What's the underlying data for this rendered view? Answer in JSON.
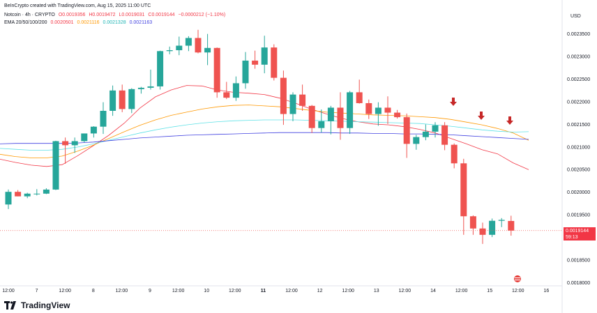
{
  "header": {
    "title": "BeInCrypto created with TradingView.com, Aug 15, 2025 11:00 UTC"
  },
  "ohlc": {
    "symbol": "Notcoin · 4h · CRYPTO",
    "open": "O0.0019356",
    "high": "H0.0019472",
    "low": "L0.0019031",
    "close": "C0.0019144",
    "change": "−0.0000212 (−1.10%)"
  },
  "ema": {
    "label": "EMA 20/50/100/200",
    "values": [
      "0.0020501",
      "0.0021116",
      "0.0021328",
      "0.0021163"
    ],
    "colors": [
      "#f23645",
      "#ff9800",
      "#5ce1e6",
      "#3f3fe0"
    ]
  },
  "axis": {
    "currency": "USD"
  },
  "price_tag": {
    "price": "0.0019144",
    "countdown": "59:13"
  },
  "footer": {
    "brand": "TradingView"
  },
  "chart_data": {
    "type": "candlestick",
    "ylim": [
      0.0018,
      0.00238
    ],
    "y_ticks": [
      "0.0018000",
      "0.0018500",
      "0.0019000",
      "0.0019500",
      "0.0020000",
      "0.0020500",
      "0.0021000",
      "0.0021500",
      "0.0022000",
      "0.0022500",
      "0.0023000",
      "0.0023500"
    ],
    "x_ticks": [
      "12:00",
      "7",
      "12:00",
      "8",
      "12:00",
      "9",
      "12:00",
      "10",
      "12:00",
      "11",
      "12:00",
      "12",
      "12:00",
      "13",
      "12:00",
      "14",
      "12:00",
      "15",
      "12:00",
      "16"
    ],
    "candles": [
      {
        "o": 0.001972,
        "h": 0.002005,
        "l": 0.001962,
        "c": 0.002
      },
      {
        "o": 0.002,
        "h": 0.002004,
        "l": 0.00199,
        "c": 0.00199
      },
      {
        "o": 0.00199,
        "h": 0.001998,
        "l": 0.001986,
        "c": 0.001996
      },
      {
        "o": 0.001996,
        "h": 0.002006,
        "l": 0.001992,
        "c": 0.001996
      },
      {
        "o": 0.001996,
        "h": 0.002008,
        "l": 0.001995,
        "c": 0.002005
      },
      {
        "o": 0.002005,
        "h": 0.002113,
        "l": 0.002004,
        "c": 0.002112
      },
      {
        "o": 0.002112,
        "h": 0.00212,
        "l": 0.002062,
        "c": 0.002103
      },
      {
        "o": 0.002103,
        "h": 0.00212,
        "l": 0.002086,
        "c": 0.002112
      },
      {
        "o": 0.002112,
        "h": 0.002129,
        "l": 0.002109,
        "c": 0.002129
      },
      {
        "o": 0.002129,
        "h": 0.002145,
        "l": 0.00212,
        "c": 0.002144
      },
      {
        "o": 0.002144,
        "h": 0.002198,
        "l": 0.002128,
        "c": 0.002179
      },
      {
        "o": 0.002179,
        "h": 0.002235,
        "l": 0.002168,
        "c": 0.002224
      },
      {
        "o": 0.002224,
        "h": 0.002237,
        "l": 0.002176,
        "c": 0.002183
      },
      {
        "o": 0.002183,
        "h": 0.002229,
        "l": 0.002174,
        "c": 0.002227
      },
      {
        "o": 0.002227,
        "h": 0.002232,
        "l": 0.002217,
        "c": 0.00223
      },
      {
        "o": 0.00223,
        "h": 0.00227,
        "l": 0.002226,
        "c": 0.002233
      },
      {
        "o": 0.002233,
        "h": 0.002312,
        "l": 0.002226,
        "c": 0.002311
      },
      {
        "o": 0.002311,
        "h": 0.002321,
        "l": 0.002304,
        "c": 0.002313
      },
      {
        "o": 0.002313,
        "h": 0.002343,
        "l": 0.002302,
        "c": 0.002323
      },
      {
        "o": 0.002323,
        "h": 0.002344,
        "l": 0.002311,
        "c": 0.00234
      },
      {
        "o": 0.00234,
        "h": 0.002358,
        "l": 0.002306,
        "c": 0.002308
      },
      {
        "o": 0.002308,
        "h": 0.002349,
        "l": 0.00228,
        "c": 0.002318
      },
      {
        "o": 0.002318,
        "h": 0.002319,
        "l": 0.002208,
        "c": 0.00222
      },
      {
        "o": 0.00222,
        "h": 0.002243,
        "l": 0.002205,
        "c": 0.002208
      },
      {
        "o": 0.002208,
        "h": 0.002255,
        "l": 0.002201,
        "c": 0.00224
      },
      {
        "o": 0.00224,
        "h": 0.002309,
        "l": 0.002228,
        "c": 0.00229
      },
      {
        "o": 0.00229,
        "h": 0.002312,
        "l": 0.002272,
        "c": 0.002281
      },
      {
        "o": 0.002281,
        "h": 0.002345,
        "l": 0.002262,
        "c": 0.002319
      },
      {
        "o": 0.002319,
        "h": 0.002326,
        "l": 0.002246,
        "c": 0.002252
      },
      {
        "o": 0.002252,
        "h": 0.002268,
        "l": 0.002148,
        "c": 0.002172
      },
      {
        "o": 0.002172,
        "h": 0.00222,
        "l": 0.002156,
        "c": 0.002215
      },
      {
        "o": 0.002215,
        "h": 0.002237,
        "l": 0.002179,
        "c": 0.00219
      },
      {
        "o": 0.00219,
        "h": 0.002192,
        "l": 0.00213,
        "c": 0.002141
      },
      {
        "o": 0.002141,
        "h": 0.002182,
        "l": 0.002131,
        "c": 0.002156
      },
      {
        "o": 0.002156,
        "h": 0.00219,
        "l": 0.002127,
        "c": 0.002186
      },
      {
        "o": 0.002186,
        "h": 0.00222,
        "l": 0.002115,
        "c": 0.002141
      },
      {
        "o": 0.002141,
        "h": 0.002223,
        "l": 0.002128,
        "c": 0.00222
      },
      {
        "o": 0.00222,
        "h": 0.002248,
        "l": 0.002195,
        "c": 0.002196
      },
      {
        "o": 0.002196,
        "h": 0.002204,
        "l": 0.002161,
        "c": 0.002172
      },
      {
        "o": 0.002172,
        "h": 0.002198,
        "l": 0.002146,
        "c": 0.002186
      },
      {
        "o": 0.002186,
        "h": 0.002211,
        "l": 0.00215,
        "c": 0.002175
      },
      {
        "o": 0.002175,
        "h": 0.002181,
        "l": 0.002162,
        "c": 0.002165
      },
      {
        "o": 0.002165,
        "h": 0.002173,
        "l": 0.002075,
        "c": 0.002106
      },
      {
        "o": 0.002106,
        "h": 0.002126,
        "l": 0.002093,
        "c": 0.002121
      },
      {
        "o": 0.002121,
        "h": 0.002149,
        "l": 0.002114,
        "c": 0.002133
      },
      {
        "o": 0.002133,
        "h": 0.002154,
        "l": 0.00212,
        "c": 0.002147
      },
      {
        "o": 0.002147,
        "h": 0.002154,
        "l": 0.002092,
        "c": 0.002104
      },
      {
        "o": 0.002104,
        "h": 0.002107,
        "l": 0.002052,
        "c": 0.002063
      },
      {
        "o": 0.002063,
        "h": 0.002073,
        "l": 0.001905,
        "c": 0.001946
      },
      {
        "o": 0.001946,
        "h": 0.001948,
        "l": 0.001905,
        "c": 0.001919
      },
      {
        "o": 0.001919,
        "h": 0.001932,
        "l": 0.001885,
        "c": 0.001905
      },
      {
        "o": 0.001905,
        "h": 0.001941,
        "l": 0.0019,
        "c": 0.001936
      },
      {
        "o": 0.001936,
        "h": 0.001942,
        "l": 0.001922,
        "c": 0.001938
      },
      {
        "o": 0.0019356,
        "h": 0.0019472,
        "l": 0.0019031,
        "c": 0.0019144
      }
    ],
    "ema_series": [
      {
        "name": "EMA 20",
        "color": "#f23645",
        "values": [
          0.002072,
          0.002065,
          0.002059,
          0.002056,
          0.00206,
          0.00208,
          0.002102,
          0.002125,
          0.002152,
          0.002185,
          0.00221,
          0.002225,
          0.002235,
          0.002234,
          0.002225,
          0.00222,
          0.002218,
          0.002215,
          0.002207,
          0.002196,
          0.002183,
          0.002172,
          0.002162,
          0.002155,
          0.00215,
          0.002148,
          0.002144,
          0.002138,
          0.00213,
          0.002118,
          0.002106,
          0.002093,
          0.002084,
          0.002064,
          0.002049
        ]
      },
      {
        "name": "EMA 50",
        "color": "#ff9800",
        "values": [
          0.002083,
          0.002078,
          0.002075,
          0.002075,
          0.002079,
          0.00209,
          0.002103,
          0.002118,
          0.002133,
          0.002147,
          0.002159,
          0.002169,
          0.002176,
          0.002183,
          0.002188,
          0.002191,
          0.002192,
          0.00219,
          0.002188,
          0.002184,
          0.00218,
          0.002176,
          0.002174,
          0.002172,
          0.00217,
          0.002169,
          0.002168,
          0.002166,
          0.002164,
          0.00216,
          0.002154,
          0.002148,
          0.00214,
          0.00213,
          0.002114
        ]
      },
      {
        "name": "EMA 100",
        "color": "#5ce1e6",
        "values": [
          0.002096,
          0.002094,
          0.002092,
          0.002092,
          0.002094,
          0.002099,
          0.002106,
          0.002114,
          0.002122,
          0.00213,
          0.002137,
          0.002143,
          0.002148,
          0.002152,
          0.002155,
          0.002157,
          0.002158,
          0.002159,
          0.002159,
          0.002159,
          0.002158,
          0.002157,
          0.002156,
          0.002155,
          0.002154,
          0.002153,
          0.002152,
          0.002151,
          0.002148,
          0.002145,
          0.002141,
          0.002137,
          0.002134,
          0.002132,
          0.002133
        ]
      },
      {
        "name": "EMA 200",
        "color": "#3f3fe0",
        "values": [
          0.002106,
          0.002107,
          0.002107,
          0.002107,
          0.002107,
          0.002108,
          0.00211,
          0.002113,
          0.002116,
          0.002119,
          0.002121,
          0.002123,
          0.002125,
          0.002126,
          0.002127,
          0.002128,
          0.002129,
          0.00213,
          0.002131,
          0.002131,
          0.002131,
          0.002131,
          0.00213,
          0.00213,
          0.002129,
          0.002129,
          0.002128,
          0.002128,
          0.002127,
          0.002126,
          0.002124,
          0.002122,
          0.00212,
          0.002118,
          0.002116
        ]
      }
    ],
    "annotations": [
      {
        "type": "arrow-down",
        "count": 3,
        "color": "#c62828"
      }
    ],
    "current_price": 0.0019144
  }
}
